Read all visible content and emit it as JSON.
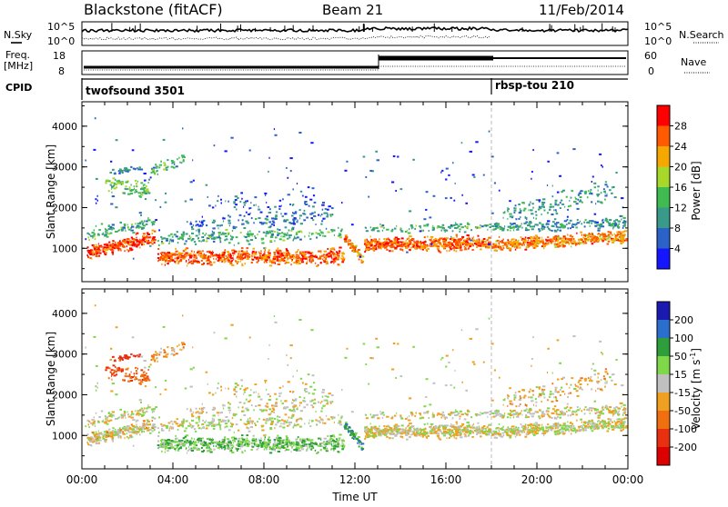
{
  "header": {
    "station": "Blackstone (fitACF)",
    "beam": "Beam 21",
    "date": "11/Feb/2014"
  },
  "summary_panels": {
    "nsky_label": "N.Sky",
    "nsearch_label": "N.Search",
    "freq_label_line1": "Freq.",
    "freq_label_line2": "[MHz]",
    "nave_label": "Nave",
    "cpid_label": "CPID",
    "noise_ticks_left": [
      "10^5",
      "10^0"
    ],
    "noise_ticks_right": [
      "10^5",
      "10^0"
    ],
    "freq_ticks": [
      "18",
      "8"
    ],
    "nave_ticks": [
      "60",
      "0"
    ],
    "cpid_segments": [
      {
        "name": "twofsound 3501",
        "start_hour": 0,
        "end_hour": 18
      },
      {
        "name": "rbsp-tou 210",
        "start_hour": 18,
        "end_hour": 24
      }
    ]
  },
  "chart_data": [
    {
      "type": "heatmap",
      "title": "",
      "parameter": "Power",
      "xlabel": "",
      "ylabel": "Slant Range [km]",
      "xlim": [
        0,
        24
      ],
      "ylim": [
        180,
        4600
      ],
      "yticks": [
        "1000",
        "2000",
        "3000",
        "4000"
      ],
      "colorbar": {
        "label": "Power [dB]",
        "ticks": [
          "4",
          "8",
          "12",
          "16",
          "20",
          "24",
          "28"
        ],
        "range": [
          0,
          32
        ],
        "colors": [
          "#1515ff",
          "#2a62c8",
          "#3a9a8a",
          "#3fbb52",
          "#a8d82a",
          "#f5a800",
          "#ff5a00",
          "#ff0000"
        ]
      }
    },
    {
      "type": "heatmap",
      "title": "",
      "parameter": "Velocity",
      "xlabel": "Time UT",
      "ylabel": "Slant Range [km]",
      "xlim": [
        0,
        24
      ],
      "ylim": [
        180,
        4600
      ],
      "yticks": [
        "1000",
        "2000",
        "3000",
        "4000"
      ],
      "xticks": [
        "00:00",
        "04:00",
        "08:00",
        "12:00",
        "16:00",
        "20:00",
        "00:00"
      ],
      "colorbar": {
        "label_main": "Velocity [m s",
        "label_sup": "-1",
        "label_end": "]",
        "ticks": [
          "200",
          "100",
          "50",
          "15",
          "-15",
          "-50",
          "-100",
          "-200"
        ],
        "colors": [
          "#1a1ab0",
          "#2a6fcc",
          "#2e9e3a",
          "#7fd84a",
          "#c0c0c0",
          "#f0a020",
          "#f07010",
          "#e83010",
          "#dd0000"
        ]
      }
    }
  ]
}
